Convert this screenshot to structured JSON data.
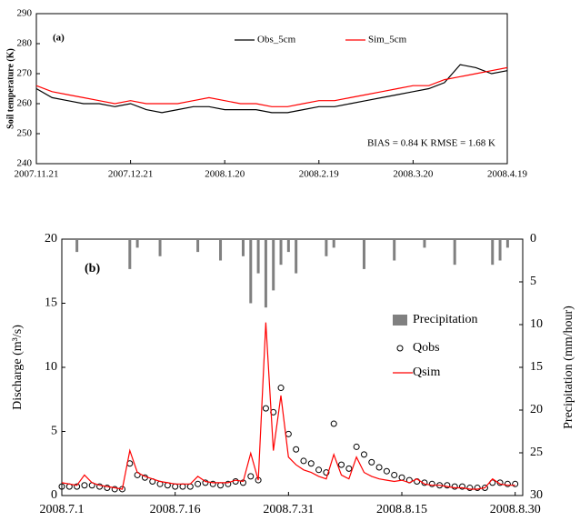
{
  "chart_data": [
    {
      "type": "line",
      "ylabel": "Soil temperature (K)",
      "annotations": [
        "(a)",
        "BIAS = 0.84 K   RMSE = 1.68 K"
      ],
      "x": [
        "2007.11.21",
        "2007.11.26",
        "2007.12.1",
        "2007.12.6",
        "2007.12.11",
        "2007.12.16",
        "2007.12.21",
        "2007.12.26",
        "2007.12.31",
        "2008.1.5",
        "2008.1.10",
        "2008.1.15",
        "2008.1.20",
        "2008.1.25",
        "2008.1.30",
        "2008.2.4",
        "2008.2.9",
        "2008.2.14",
        "2008.2.19",
        "2008.2.24",
        "2008.2.29",
        "2008.3.5",
        "2008.3.10",
        "2008.3.15",
        "2008.3.20",
        "2008.3.25",
        "2008.3.30",
        "2008.4.4",
        "2008.4.9",
        "2008.4.14",
        "2008.4.19"
      ],
      "series": [
        {
          "name": "Obs_5cm",
          "type": "line",
          "color": "#000000",
          "values": [
            265,
            262,
            261,
            260,
            260,
            259,
            260,
            258,
            257,
            258,
            259,
            259,
            258,
            258,
            258,
            257,
            257,
            258,
            259,
            259,
            260,
            261,
            262,
            263,
            264,
            265,
            267,
            273,
            272,
            270,
            271
          ]
        },
        {
          "name": "Sim_5cm",
          "type": "line",
          "color": "#ff0000",
          "values": [
            266,
            264,
            263,
            262,
            261,
            260,
            261,
            260,
            260,
            260,
            261,
            262,
            261,
            260,
            260,
            259,
            259,
            260,
            261,
            261,
            262,
            263,
            264,
            265,
            266,
            266,
            268,
            269,
            270,
            271,
            272
          ]
        }
      ],
      "xlim": [
        "2007.11.21",
        "2008.4.19"
      ],
      "xticks": [
        "2007.11.21",
        "2007.12.21",
        "2008.1.20",
        "2008.2.19",
        "2008.3.20",
        "2008.4.19"
      ],
      "ylim": [
        240,
        290
      ],
      "yticks": [
        240,
        250,
        260,
        270,
        280,
        290
      ],
      "grid": false,
      "legend": "top"
    },
    {
      "type": "combo",
      "ylabel": "Discharge (m³/s)",
      "y2label": "Precipitation (mm/hour)",
      "annotations": [
        "(b)"
      ],
      "x": [
        "2008.7.1",
        "2008.7.2",
        "2008.7.3",
        "2008.7.4",
        "2008.7.5",
        "2008.7.6",
        "2008.7.7",
        "2008.7.8",
        "2008.7.9",
        "2008.7.10",
        "2008.7.11",
        "2008.7.12",
        "2008.7.13",
        "2008.7.14",
        "2008.7.15",
        "2008.7.16",
        "2008.7.17",
        "2008.7.18",
        "2008.7.19",
        "2008.7.20",
        "2008.7.21",
        "2008.7.22",
        "2008.7.23",
        "2008.7.24",
        "2008.7.25",
        "2008.7.26",
        "2008.7.27",
        "2008.7.28",
        "2008.7.29",
        "2008.7.30",
        "2008.7.31",
        "2008.8.1",
        "2008.8.2",
        "2008.8.3",
        "2008.8.4",
        "2008.8.5",
        "2008.8.6",
        "2008.8.7",
        "2008.8.8",
        "2008.8.9",
        "2008.8.10",
        "2008.8.11",
        "2008.8.12",
        "2008.8.13",
        "2008.8.14",
        "2008.8.15",
        "2008.8.16",
        "2008.8.17",
        "2008.8.18",
        "2008.8.19",
        "2008.8.20",
        "2008.8.21",
        "2008.8.22",
        "2008.8.23",
        "2008.8.24",
        "2008.8.25",
        "2008.8.26",
        "2008.8.27",
        "2008.8.28",
        "2008.8.29",
        "2008.8.30"
      ],
      "series": [
        {
          "name": "Precipitation",
          "type": "bar",
          "axis": "y2",
          "color": "#808080",
          "values": [
            0,
            0,
            1.5,
            0,
            0,
            0,
            0,
            0,
            0,
            3.5,
            1,
            0,
            0,
            2,
            0,
            0,
            0,
            0,
            1.5,
            0,
            0,
            2.5,
            0,
            0,
            2,
            7.5,
            4,
            8,
            6,
            3,
            1.5,
            4,
            0,
            0,
            0,
            2,
            1,
            0,
            0,
            0,
            3.5,
            0,
            0,
            0,
            2.5,
            0,
            0,
            0,
            1,
            0,
            0,
            0,
            3,
            0,
            0,
            0,
            0,
            3,
            2.5,
            1,
            0
          ]
        },
        {
          "name": "Qobs",
          "type": "scatter",
          "color": "#000000",
          "values": [
            0.7,
            0.7,
            0.7,
            0.8,
            0.8,
            0.7,
            0.6,
            0.5,
            0.5,
            2.5,
            1.6,
            1.4,
            1.1,
            0.9,
            0.8,
            0.7,
            0.7,
            0.7,
            0.9,
            1.0,
            0.9,
            0.8,
            0.9,
            1.1,
            1.0,
            1.5,
            1.2,
            6.8,
            6.5,
            8.4,
            4.8,
            3.6,
            2.7,
            2.5,
            2.0,
            1.8,
            5.6,
            2.4,
            2.1,
            3.8,
            3.2,
            2.6,
            2.2,
            1.9,
            1.6,
            1.4,
            1.2,
            1.1,
            1.0,
            0.9,
            0.8,
            0.8,
            0.7,
            0.7,
            0.6,
            0.6,
            0.6,
            1.0,
            1.0,
            0.9,
            0.9
          ]
        },
        {
          "name": "Qsim",
          "type": "line",
          "color": "#ff0000",
          "values": [
            1.0,
            0.9,
            0.8,
            1.6,
            1.0,
            0.8,
            0.7,
            0.6,
            0.5,
            3.5,
            1.8,
            1.5,
            1.3,
            1.1,
            1.0,
            0.9,
            0.9,
            0.9,
            1.5,
            1.1,
            1.0,
            1.0,
            1.0,
            1.2,
            1.1,
            3.3,
            1.2,
            13.5,
            3.5,
            7.8,
            3.0,
            2.4,
            2.0,
            1.8,
            1.5,
            1.3,
            3.2,
            1.6,
            1.3,
            3.0,
            1.8,
            1.5,
            1.3,
            1.2,
            1.1,
            1.2,
            1.0,
            1.3,
            0.9,
            0.8,
            0.8,
            0.7,
            0.6,
            0.6,
            0.5,
            0.5,
            0.6,
            1.3,
            0.9,
            0.8,
            0.8
          ]
        }
      ],
      "xlim": [
        "2008.7.1",
        "2008.8.31"
      ],
      "xticks": [
        "2008.7.1",
        "2008.7.16",
        "2008.7.31",
        "2008.8.15",
        "2008.8.30"
      ],
      "ylim": [
        0,
        20
      ],
      "yticks": [
        0,
        5,
        10,
        15,
        20
      ],
      "y2lim": [
        30,
        0
      ],
      "y2ticks": [
        0,
        5,
        10,
        15,
        20,
        25,
        30
      ],
      "grid": false,
      "legend": "right"
    }
  ]
}
